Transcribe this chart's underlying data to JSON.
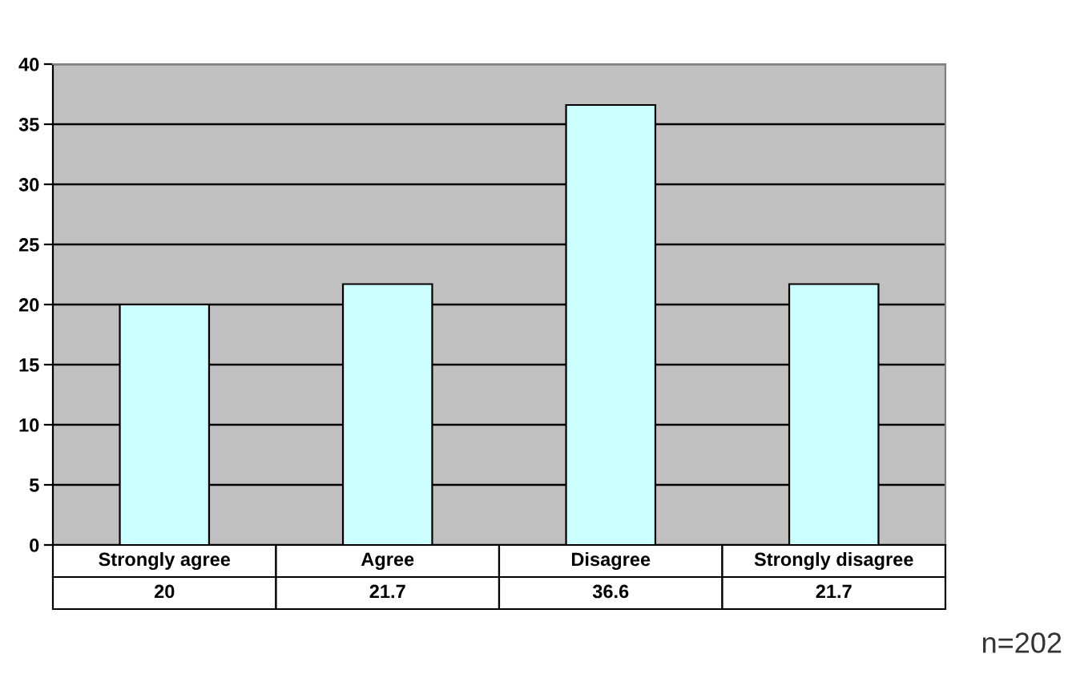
{
  "chart_data": {
    "type": "bar",
    "categories": [
      "Strongly agree",
      "Agree",
      "Disagree",
      "Strongly disagree"
    ],
    "values": [
      20,
      21.7,
      36.6,
      21.7
    ],
    "color": "#ccffff",
    "ylim": [
      0,
      40
    ],
    "yticks": [
      0,
      5,
      10,
      15,
      20,
      25,
      30,
      35,
      40
    ],
    "grid": "y",
    "data_labels": true,
    "annotations": [
      "n=202"
    ]
  }
}
